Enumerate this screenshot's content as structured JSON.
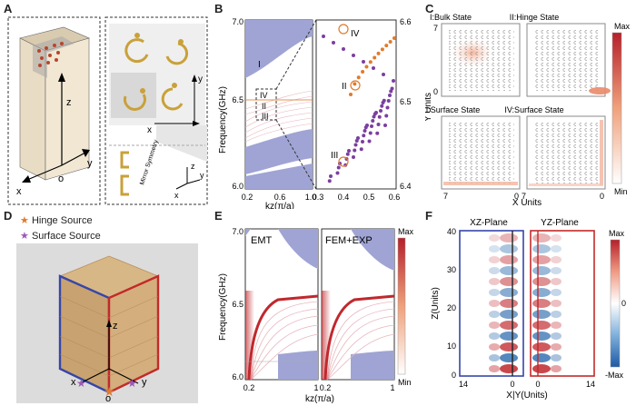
{
  "panels": {
    "A": {
      "label": "A",
      "axes": {
        "x": "x",
        "y": "y",
        "z": "z",
        "o": "o"
      },
      "inset_axes": {
        "x": "x",
        "y": "y",
        "z": "z"
      },
      "mirror_label": "Mirror Symmetry"
    },
    "B": {
      "label": "B",
      "ylabel": "Frequency(GHz)",
      "xlabel": "kz(π/a)",
      "left_yticks": [
        "7.0",
        "6.5",
        "6.0"
      ],
      "left_xticks": [
        "0.2",
        "0.6",
        "1.0"
      ],
      "right_yticks": [
        "6.6",
        "6.5",
        "6.4"
      ],
      "right_xticks": [
        "0.3",
        "0.4",
        "0.5",
        "0.6"
      ],
      "band_labels": [
        "I",
        "IV",
        "II",
        "III"
      ],
      "zoom_labels": [
        "IV",
        "II",
        "III"
      ]
    },
    "C": {
      "label": "C",
      "subplots": [
        "I:Bulk State",
        "II:Hinge State",
        "III:Surface State",
        "IV:Surface State"
      ],
      "yticks_top": [
        "7",
        "0"
      ],
      "xticks_bottom": [
        "7",
        "0"
      ],
      "ylabel": "Y Units",
      "xlabel": "X Units",
      "colorbar": {
        "max": "Max",
        "min": "Min"
      }
    },
    "D": {
      "label": "D",
      "legend": [
        {
          "name": "Hinge Source",
          "color": "#e07b2c"
        },
        {
          "name": "Surface Source",
          "color": "#9b59b6"
        }
      ],
      "axes": {
        "x": "x",
        "y": "y",
        "z": "z",
        "o": "o"
      }
    },
    "E": {
      "label": "E",
      "ylabel": "Frequency(GHz)",
      "xlabel": "kz(π/a)",
      "yticks": [
        "7.0",
        "6.5",
        "6.0"
      ],
      "left_title": "EMT",
      "right_title": "FEM+EXP",
      "xticks": [
        "0.2",
        "1"
      ],
      "colorbar": {
        "max": "Max",
        "min": "Min"
      }
    },
    "F": {
      "label": "F",
      "titles": [
        "XZ-Plane",
        "YZ-Plane"
      ],
      "ylabel": "Z(Units)",
      "xlabel": "X|Y(Units)",
      "yticks": [
        "40",
        "30",
        "20",
        "10",
        "0"
      ],
      "xticks": [
        "14",
        "0",
        "0",
        "14"
      ],
      "colorbar": {
        "max": "Max",
        "zero": "0",
        "min": "-Max"
      }
    }
  },
  "colors": {
    "band": "#9fa4d4",
    "hinge": "#e07b2c",
    "surface": "#8e44ad",
    "red": "#c0282d",
    "blue": "#2b6aad"
  }
}
